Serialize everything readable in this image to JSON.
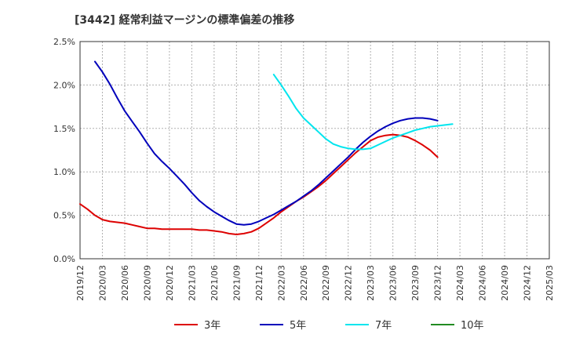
{
  "chart_data": {
    "type": "line",
    "title": "[3442]  経常利益マージンの標準偏差の推移",
    "xlabel": "",
    "ylabel": "",
    "ylim": [
      0,
      0.025
    ],
    "yticks": [
      "0.0%",
      "0.5%",
      "1.0%",
      "1.5%",
      "2.0%",
      "2.5%"
    ],
    "xticks": [
      "2019/12",
      "2020/03",
      "2020/06",
      "2020/09",
      "2020/12",
      "2021/03",
      "2021/06",
      "2021/09",
      "2021/12",
      "2022/03",
      "2022/06",
      "2022/09",
      "2022/12",
      "2023/03",
      "2023/06",
      "2023/09",
      "2023/12",
      "2024/03",
      "2024/06",
      "2024/09",
      "2024/12",
      "2025/03"
    ],
    "grid": true,
    "legend_position": "bottom",
    "series": [
      {
        "name": "3年",
        "color": "#dd0000",
        "start": "2019/12",
        "values": [
          0.0063,
          0.0057,
          0.005,
          0.0045,
          0.0043,
          0.0042,
          0.0041,
          0.0039,
          0.0037,
          0.0035,
          0.0035,
          0.0034,
          0.0034,
          0.0034,
          0.0034,
          0.0034,
          0.0033,
          0.0033,
          0.0032,
          0.0031,
          0.0029,
          0.0028,
          0.0029,
          0.0031,
          0.0035,
          0.0041,
          0.0047,
          0.0054,
          0.006,
          0.0066,
          0.0071,
          0.0077,
          0.0083,
          0.009,
          0.0098,
          0.0106,
          0.0114,
          0.0122,
          0.0129,
          0.0136,
          0.014,
          0.0142,
          0.0143,
          0.0142,
          0.014,
          0.0136,
          0.0131,
          0.0125,
          0.0117
        ]
      },
      {
        "name": "5年",
        "color": "#0000bb",
        "start": "2020/02",
        "values": [
          0.0227,
          0.0215,
          0.0201,
          0.0185,
          0.017,
          0.0158,
          0.0146,
          0.0133,
          0.0121,
          0.0112,
          0.0104,
          0.0095,
          0.0086,
          0.0076,
          0.0067,
          0.006,
          0.0054,
          0.0049,
          0.0044,
          0.004,
          0.0039,
          0.004,
          0.0043,
          0.0047,
          0.0051,
          0.0056,
          0.0061,
          0.0066,
          0.0072,
          0.0078,
          0.0085,
          0.0093,
          0.0101,
          0.0109,
          0.0117,
          0.0126,
          0.0134,
          0.0141,
          0.0147,
          0.0152,
          0.0156,
          0.0159,
          0.0161,
          0.0162,
          0.0162,
          0.0161,
          0.0159
        ]
      },
      {
        "name": "7年",
        "color": "#00e5ee",
        "start": "2022/02",
        "values": [
          0.0212,
          0.02,
          0.0187,
          0.0173,
          0.0162,
          0.0154,
          0.0146,
          0.0138,
          0.0132,
          0.0129,
          0.0127,
          0.0126,
          0.0126,
          0.0127,
          0.0131,
          0.0135,
          0.0139,
          0.0142,
          0.0145,
          0.0148,
          0.015,
          0.0152,
          0.0153,
          0.0154,
          0.0155
        ]
      },
      {
        "name": "10年",
        "color": "#228b22",
        "start": "",
        "values": []
      }
    ]
  }
}
